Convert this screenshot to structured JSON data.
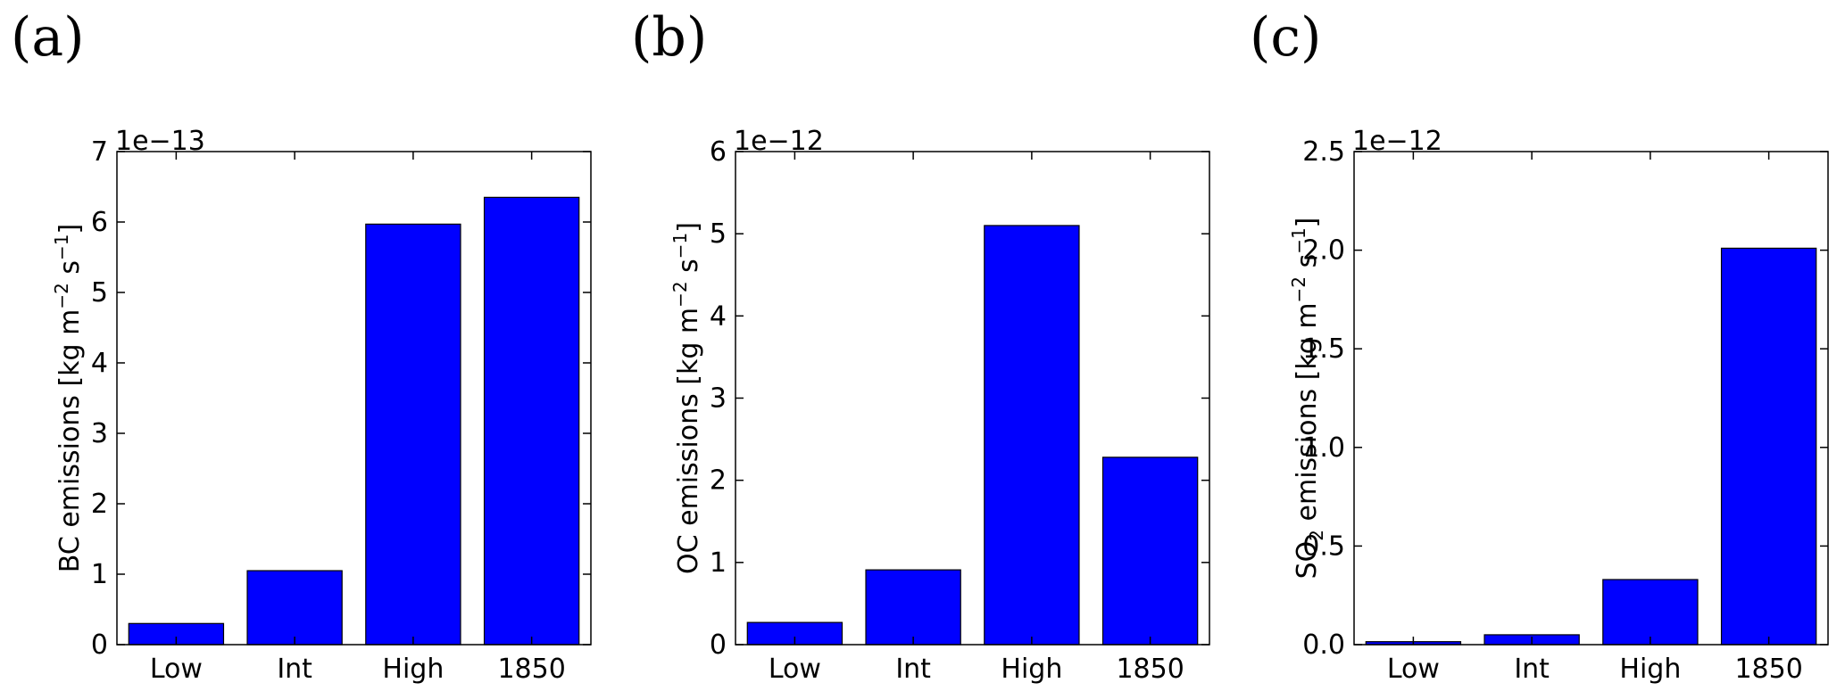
{
  "figure": {
    "panels": [
      "(a)",
      "(b)",
      "(c)"
    ]
  },
  "chart_data": [
    {
      "type": "bar",
      "panel": "(a)",
      "categories": [
        "Low",
        "Int",
        "High",
        "1850"
      ],
      "values": [
        0.3,
        1.05,
        5.97,
        6.35
      ],
      "scale_factor": "1e−13",
      "ylabel_prefix": "BC",
      "ylabel_main": " emissions [kg m",
      "ylabel_exp1": "−2",
      "ylabel_mid": " s",
      "ylabel_exp2": "−1",
      "ylabel_end": "]",
      "ylim": [
        0,
        7
      ],
      "yticks": [
        0,
        1,
        2,
        3,
        4,
        5,
        6,
        7
      ],
      "ytick_labels": [
        "0",
        "1",
        "2",
        "3",
        "4",
        "5",
        "6",
        "7"
      ],
      "color": "#0000ff",
      "grid": false
    },
    {
      "type": "bar",
      "panel": "(b)",
      "categories": [
        "Low",
        "Int",
        "High",
        "1850"
      ],
      "values": [
        0.27,
        0.91,
        5.1,
        2.28
      ],
      "scale_factor": "1e−12",
      "ylabel_prefix": "OC",
      "ylabel_main": " emissions [kg m",
      "ylabel_exp1": "−2",
      "ylabel_mid": " s",
      "ylabel_exp2": "−1",
      "ylabel_end": "]",
      "ylim": [
        0,
        6
      ],
      "yticks": [
        0,
        1,
        2,
        3,
        4,
        5,
        6
      ],
      "ytick_labels": [
        "0",
        "1",
        "2",
        "3",
        "4",
        "5",
        "6"
      ],
      "color": "#0000ff",
      "grid": false
    },
    {
      "type": "bar",
      "panel": "(c)",
      "categories": [
        "Low",
        "Int",
        "High",
        "1850"
      ],
      "values": [
        0.015,
        0.05,
        0.33,
        2.01
      ],
      "scale_factor": "1e−12",
      "ylabel_prefix": "SO",
      "ylabel_sub": "2",
      "ylabel_main": " emissions [kg m",
      "ylabel_exp1": "−2",
      "ylabel_mid": " s",
      "ylabel_exp2": "−1",
      "ylabel_end": "]",
      "ylim": [
        0,
        2.5
      ],
      "yticks": [
        0,
        0.5,
        1.0,
        1.5,
        2.0,
        2.5
      ],
      "ytick_labels": [
        "0.0",
        "0.5",
        "1.0",
        "1.5",
        "2.0",
        "2.5"
      ],
      "color": "#0000ff",
      "grid": false
    }
  ]
}
